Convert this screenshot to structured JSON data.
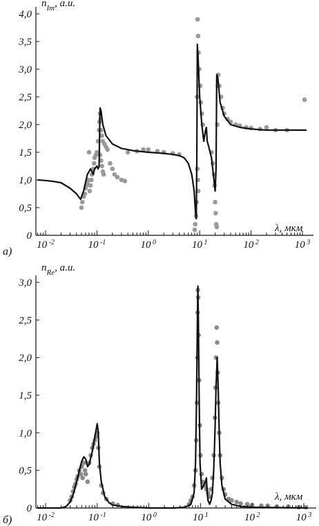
{
  "chart_data": [
    {
      "id": "panel-a",
      "type": "line",
      "panel_label": "а)",
      "ylabel": "n",
      "ylabel_sub": "Im",
      "ylabel_unit": ", a.u.",
      "xlabel": "λ, мкм",
      "x_scale": "log",
      "xlim": [
        0.007,
        1200
      ],
      "ylim": [
        0,
        4.0
      ],
      "y_ticks": [
        "4,0",
        "3,5",
        "3,0",
        "2,5",
        "2,0",
        "1,5",
        "1,0",
        "0,5",
        "0"
      ],
      "y_tick_values": [
        4.0,
        3.5,
        3.0,
        2.5,
        2.0,
        1.5,
        1.0,
        0.5,
        0
      ],
      "x_ticks": [
        {
          "base": "10",
          "exp": "-2",
          "value": 0.01
        },
        {
          "base": "10",
          "exp": "-1",
          "value": 0.1
        },
        {
          "base": "10",
          "exp": "0",
          "value": 1
        },
        {
          "base": "10",
          "exp": "1",
          "value": 10
        },
        {
          "base": "10",
          "exp": "2",
          "value": 100
        },
        {
          "base": "10",
          "exp": "3",
          "value": 1000
        }
      ],
      "model_curve": [
        [
          0.007,
          1.0
        ],
        [
          0.01,
          0.99
        ],
        [
          0.015,
          0.97
        ],
        [
          0.02,
          0.95
        ],
        [
          0.03,
          0.85
        ],
        [
          0.04,
          0.75
        ],
        [
          0.048,
          0.65
        ],
        [
          0.055,
          0.8
        ],
        [
          0.065,
          1.1
        ],
        [
          0.07,
          1.15
        ],
        [
          0.075,
          1.2
        ],
        [
          0.08,
          1.15
        ],
        [
          0.085,
          1.1
        ],
        [
          0.09,
          1.2
        ],
        [
          0.1,
          1.25
        ],
        [
          0.105,
          1.2
        ],
        [
          0.11,
          1.25
        ],
        [
          0.115,
          2.3
        ],
        [
          0.12,
          2.25
        ],
        [
          0.13,
          2.0
        ],
        [
          0.15,
          1.8
        ],
        [
          0.2,
          1.65
        ],
        [
          0.3,
          1.57
        ],
        [
          0.5,
          1.53
        ],
        [
          1,
          1.5
        ],
        [
          2,
          1.48
        ],
        [
          3,
          1.46
        ],
        [
          4,
          1.44
        ],
        [
          5,
          1.4
        ],
        [
          6,
          1.3
        ],
        [
          7,
          1.1
        ],
        [
          7.8,
          0.8
        ],
        [
          8.3,
          0.4
        ],
        [
          8.6,
          0.3
        ],
        [
          8.8,
          1.5
        ],
        [
          9.0,
          3.45
        ],
        [
          9.3,
          3.2
        ],
        [
          10,
          2.5
        ],
        [
          11,
          2.0
        ],
        [
          12,
          1.7
        ],
        [
          13,
          1.9
        ],
        [
          13.5,
          1.95
        ],
        [
          14,
          1.7
        ],
        [
          15,
          1.6
        ],
        [
          17,
          1.4
        ],
        [
          19,
          1.0
        ],
        [
          20,
          0.8
        ],
        [
          20.8,
          1.2
        ],
        [
          21.5,
          2.9
        ],
        [
          22.5,
          2.85
        ],
        [
          25,
          2.4
        ],
        [
          30,
          2.15
        ],
        [
          40,
          2.0
        ],
        [
          60,
          1.95
        ],
        [
          100,
          1.92
        ],
        [
          200,
          1.9
        ],
        [
          500,
          1.9
        ],
        [
          1200,
          1.9
        ]
      ],
      "measured_points": [
        [
          0.05,
          0.5
        ],
        [
          0.052,
          0.6
        ],
        [
          0.055,
          0.7
        ],
        [
          0.058,
          0.75
        ],
        [
          0.06,
          0.85
        ],
        [
          0.062,
          0.9
        ],
        [
          0.065,
          0.95
        ],
        [
          0.068,
          1.0
        ],
        [
          0.07,
          1.5
        ],
        [
          0.072,
          0.8
        ],
        [
          0.075,
          0.9
        ],
        [
          0.078,
          1.0
        ],
        [
          0.08,
          1.1
        ],
        [
          0.085,
          1.2
        ],
        [
          0.088,
          1.3
        ],
        [
          0.09,
          1.4
        ],
        [
          0.095,
          1.45
        ],
        [
          0.1,
          1.5
        ],
        [
          0.105,
          1.7
        ],
        [
          0.11,
          1.9
        ],
        [
          0.112,
          2.05
        ],
        [
          0.115,
          2.2
        ],
        [
          0.118,
          2.1
        ],
        [
          0.12,
          1.9
        ],
        [
          0.125,
          1.8
        ],
        [
          0.13,
          1.7
        ],
        [
          0.14,
          1.65
        ],
        [
          0.15,
          1.6
        ],
        [
          0.16,
          1.55
        ],
        [
          0.18,
          1.3
        ],
        [
          0.2,
          1.2
        ],
        [
          0.22,
          1.1
        ],
        [
          0.25,
          1.05
        ],
        [
          0.3,
          1.0
        ],
        [
          0.35,
          0.98
        ],
        [
          0.115,
          1.45
        ],
        [
          0.12,
          1.35
        ],
        [
          0.125,
          1.25
        ],
        [
          0.13,
          1.15
        ],
        [
          0.135,
          1.1
        ],
        [
          0.4,
          1.5
        ],
        [
          0.6,
          1.52
        ],
        [
          0.8,
          1.55
        ],
        [
          1.0,
          1.55
        ],
        [
          1.5,
          1.52
        ],
        [
          2.0,
          1.5
        ],
        [
          3.0,
          1.48
        ],
        [
          4.0,
          1.46
        ],
        [
          8.0,
          0.1
        ],
        [
          8.2,
          0.2
        ],
        [
          8.5,
          0.35
        ],
        [
          8.7,
          0.6
        ],
        [
          8.9,
          2.5
        ],
        [
          9.1,
          3.9
        ],
        [
          9.3,
          3.6
        ],
        [
          9.5,
          3.3
        ],
        [
          9.8,
          3.0
        ],
        [
          10.2,
          2.7
        ],
        [
          10.5,
          2.4
        ],
        [
          11,
          2.2
        ],
        [
          11.5,
          2.0
        ],
        [
          9.0,
          1.2
        ],
        [
          9.2,
          1.0
        ],
        [
          9.4,
          0.8
        ],
        [
          17,
          1.5
        ],
        [
          18,
          1.3
        ],
        [
          19,
          1.1
        ],
        [
          19.5,
          0.9
        ],
        [
          20,
          0.6
        ],
        [
          20.5,
          0.4
        ],
        [
          21,
          0.2
        ],
        [
          21.5,
          0.15
        ],
        [
          22,
          2.0
        ],
        [
          22.5,
          2.7
        ],
        [
          23,
          2.9
        ],
        [
          24,
          2.7
        ],
        [
          26,
          2.5
        ],
        [
          28,
          2.3
        ],
        [
          30,
          2.2
        ],
        [
          35,
          2.1
        ],
        [
          40,
          2.05
        ],
        [
          50,
          2.0
        ],
        [
          60,
          1.98
        ],
        [
          80,
          1.95
        ],
        [
          100,
          1.94
        ],
        [
          150,
          1.92
        ],
        [
          200,
          1.95
        ],
        [
          300,
          1.9
        ],
        [
          500,
          1.9
        ],
        [
          1100,
          2.45
        ]
      ]
    },
    {
      "id": "panel-b",
      "type": "line",
      "panel_label": "б)",
      "ylabel": "n",
      "ylabel_sub": "Re",
      "ylabel_unit": ", a.u.",
      "xlabel": "λ, мкм",
      "x_scale": "log",
      "xlim": [
        0.007,
        1200
      ],
      "ylim": [
        0,
        3.0
      ],
      "y_ticks": [
        "3,0",
        "2,5",
        "2,0",
        "1,5",
        "1,0",
        "0,5",
        "0"
      ],
      "y_tick_values": [
        3.0,
        2.5,
        2.0,
        1.5,
        1.0,
        0.5,
        0
      ],
      "x_ticks": [
        {
          "base": "10",
          "exp": "-2",
          "value": 0.01
        },
        {
          "base": "10",
          "exp": "-1",
          "value": 0.1
        },
        {
          "base": "10",
          "exp": "0",
          "value": 1
        },
        {
          "base": "10",
          "exp": "1",
          "value": 10
        },
        {
          "base": "10",
          "exp": "2",
          "value": 100
        },
        {
          "base": "10",
          "exp": "3",
          "value": 1000
        }
      ],
      "model_curve": [
        [
          0.007,
          0.0
        ],
        [
          0.02,
          0.0
        ],
        [
          0.025,
          0.02
        ],
        [
          0.03,
          0.08
        ],
        [
          0.035,
          0.2
        ],
        [
          0.04,
          0.35
        ],
        [
          0.045,
          0.5
        ],
        [
          0.05,
          0.62
        ],
        [
          0.055,
          0.68
        ],
        [
          0.06,
          0.65
        ],
        [
          0.065,
          0.55
        ],
        [
          0.07,
          0.58
        ],
        [
          0.08,
          0.75
        ],
        [
          0.09,
          0.95
        ],
        [
          0.1,
          1.12
        ],
        [
          0.105,
          1.0
        ],
        [
          0.11,
          0.6
        ],
        [
          0.12,
          0.35
        ],
        [
          0.14,
          0.15
        ],
        [
          0.17,
          0.07
        ],
        [
          0.2,
          0.04
        ],
        [
          0.3,
          0.02
        ],
        [
          0.5,
          0.01
        ],
        [
          1,
          0.0
        ],
        [
          3,
          0.0
        ],
        [
          5,
          0.01
        ],
        [
          6.5,
          0.05
        ],
        [
          7.5,
          0.2
        ],
        [
          8.0,
          0.6
        ],
        [
          8.4,
          1.5
        ],
        [
          8.7,
          2.5
        ],
        [
          8.9,
          2.95
        ],
        [
          9.1,
          2.5
        ],
        [
          9.4,
          1.5
        ],
        [
          9.8,
          0.6
        ],
        [
          10.5,
          0.25
        ],
        [
          11.5,
          0.3
        ],
        [
          12.5,
          0.35
        ],
        [
          13.0,
          0.4
        ],
        [
          13.5,
          0.2
        ],
        [
          14,
          0.1
        ],
        [
          15,
          0.05
        ],
        [
          16,
          0.1
        ],
        [
          17,
          0.2
        ],
        [
          18,
          0.5
        ],
        [
          19,
          1.0
        ],
        [
          20,
          1.6
        ],
        [
          21,
          2.0
        ],
        [
          22,
          1.6
        ],
        [
          23,
          1.0
        ],
        [
          24,
          0.6
        ],
        [
          26,
          0.3
        ],
        [
          30,
          0.12
        ],
        [
          40,
          0.05
        ],
        [
          60,
          0.02
        ],
        [
          100,
          0.01
        ],
        [
          1200,
          0.0
        ]
      ],
      "measured_points": [
        [
          0.03,
          0.1
        ],
        [
          0.032,
          0.15
        ],
        [
          0.034,
          0.22
        ],
        [
          0.036,
          0.28
        ],
        [
          0.038,
          0.32
        ],
        [
          0.04,
          0.38
        ],
        [
          0.042,
          0.42
        ],
        [
          0.045,
          0.5
        ],
        [
          0.048,
          0.45
        ],
        [
          0.05,
          0.55
        ],
        [
          0.052,
          0.4
        ],
        [
          0.055,
          0.6
        ],
        [
          0.058,
          0.5
        ],
        [
          0.06,
          0.45
        ],
        [
          0.065,
          0.35
        ],
        [
          0.07,
          0.6
        ],
        [
          0.075,
          0.7
        ],
        [
          0.08,
          0.8
        ],
        [
          0.085,
          0.85
        ],
        [
          0.09,
          0.9
        ],
        [
          0.095,
          0.95
        ],
        [
          0.1,
          1.0
        ],
        [
          0.105,
          0.8
        ],
        [
          0.11,
          0.55
        ],
        [
          0.12,
          0.3
        ],
        [
          0.13,
          0.2
        ],
        [
          0.15,
          0.12
        ],
        [
          0.2,
          0.06
        ],
        [
          0.25,
          0.04
        ],
        [
          6.0,
          0.05
        ],
        [
          6.5,
          0.1
        ],
        [
          7.0,
          0.15
        ],
        [
          7.5,
          0.3
        ],
        [
          8.0,
          0.5
        ],
        [
          8.3,
          0.9
        ],
        [
          8.5,
          1.4
        ],
        [
          8.7,
          2.0
        ],
        [
          8.8,
          2.6
        ],
        [
          8.9,
          2.9
        ],
        [
          9.0,
          2.8
        ],
        [
          9.2,
          2.3
        ],
        [
          9.4,
          1.7
        ],
        [
          9.7,
          1.1
        ],
        [
          10.0,
          0.7
        ],
        [
          10.5,
          0.45
        ],
        [
          11,
          0.35
        ],
        [
          12,
          0.3
        ],
        [
          13,
          0.25
        ],
        [
          14,
          0.2
        ],
        [
          15,
          0.15
        ],
        [
          16,
          0.25
        ],
        [
          17,
          0.4
        ],
        [
          18,
          0.7
        ],
        [
          19,
          1.2
        ],
        [
          19.5,
          1.6
        ],
        [
          20,
          2.0
        ],
        [
          20.5,
          2.4
        ],
        [
          21,
          2.2
        ],
        [
          21.5,
          1.8
        ],
        [
          22,
          1.4
        ],
        [
          23,
          1.0
        ],
        [
          24,
          0.7
        ],
        [
          26,
          0.4
        ],
        [
          28,
          0.25
        ],
        [
          30,
          0.18
        ],
        [
          35,
          0.12
        ],
        [
          40,
          0.1
        ],
        [
          50,
          0.08
        ],
        [
          60,
          0.06
        ],
        [
          80,
          0.05
        ],
        [
          100,
          0.04
        ],
        [
          150,
          0.03
        ],
        [
          200,
          0.03
        ],
        [
          300,
          0.02
        ],
        [
          500,
          0.02
        ],
        [
          800,
          0.01
        ],
        [
          1100,
          0.01
        ]
      ]
    }
  ]
}
